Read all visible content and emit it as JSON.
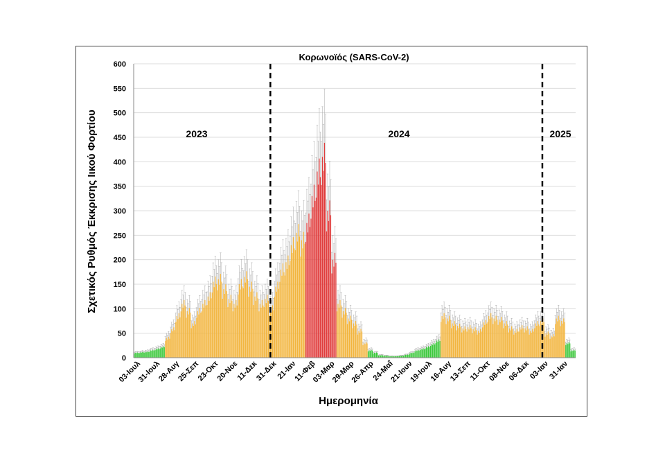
{
  "chart_data": {
    "type": "bar",
    "title": "Κορωνοϊός (SARS-CoV-2)",
    "xlabel": "Ημερομηνία",
    "ylabel": "Σχετικός Ρυθμός Έκκρισης Ιικού Φορτίου",
    "ylim": [
      0,
      600
    ],
    "yticks": [
      0,
      50,
      100,
      150,
      200,
      250,
      300,
      350,
      400,
      450,
      500,
      550,
      600
    ],
    "grid": true,
    "x_tick_labels": [
      "03-Ιουλ",
      "31-Ιουλ",
      "28-Αυγ",
      "25-Σεπ",
      "23-Οκτ",
      "20-Νοε",
      "11-Δεκ",
      "31-Δεκ",
      "21-Ιαν",
      "11-Φεβ",
      "03-Μαρ",
      "29-Μαρ",
      "26-Απρ",
      "24-Μαΐ",
      "21-Ιουν",
      "19-Ιουλ",
      "16-Αυγ",
      "13-Σεπ",
      "11-Οκτ",
      "08-Νοε",
      "06-Δεκ",
      "03-Ιαν",
      "31-Ιαν"
    ],
    "year_labels": [
      "2023",
      "2024",
      "2025"
    ],
    "year_dividers": [
      "31-Δεκ",
      "03-Ιαν"
    ],
    "colors": {
      "low": "#3cc83c",
      "medium": "#f2b43c",
      "high": "#e03c3c",
      "error": "#a8a8a8"
    },
    "weekly_values": [
      10,
      11,
      12,
      15,
      18,
      22,
      40,
      58,
      85,
      110,
      95,
      70,
      95,
      110,
      125,
      155,
      160,
      140,
      120,
      110,
      150,
      165,
      145,
      125,
      110,
      120,
      100,
      145,
      180,
      195,
      230,
      255,
      240,
      275,
      330,
      380,
      410,
      300,
      200,
      110,
      95,
      80,
      70,
      55,
      30,
      15,
      10,
      5,
      4,
      3,
      3,
      4,
      6,
      10,
      15,
      18,
      22,
      28,
      35,
      85,
      80,
      70,
      65,
      60,
      62,
      58,
      55,
      72,
      85,
      80,
      78,
      70,
      60,
      55,
      62,
      60,
      55,
      70,
      75,
      50,
      45,
      80,
      75,
      30,
      15
    ],
    "weekly_levels": [
      "low",
      "low",
      "low",
      "low",
      "low",
      "low",
      "medium",
      "medium",
      "medium",
      "medium",
      "medium",
      "medium",
      "medium",
      "medium",
      "medium",
      "medium",
      "medium",
      "medium",
      "medium",
      "medium",
      "medium",
      "medium",
      "medium",
      "medium",
      "medium",
      "medium",
      "medium",
      "medium",
      "medium",
      "medium",
      "medium",
      "medium",
      "medium",
      "high",
      "high",
      "high",
      "high",
      "high",
      "high",
      "medium",
      "medium",
      "medium",
      "medium",
      "medium",
      "medium",
      "low",
      "low",
      "low",
      "low",
      "low",
      "low",
      "low",
      "low",
      "low",
      "low",
      "low",
      "low",
      "low",
      "low",
      "medium",
      "medium",
      "medium",
      "medium",
      "medium",
      "medium",
      "medium",
      "medium",
      "medium",
      "medium",
      "medium",
      "medium",
      "medium",
      "medium",
      "medium",
      "medium",
      "medium",
      "medium",
      "medium",
      "medium",
      "medium",
      "medium",
      "medium",
      "medium",
      "low",
      "low"
    ]
  }
}
